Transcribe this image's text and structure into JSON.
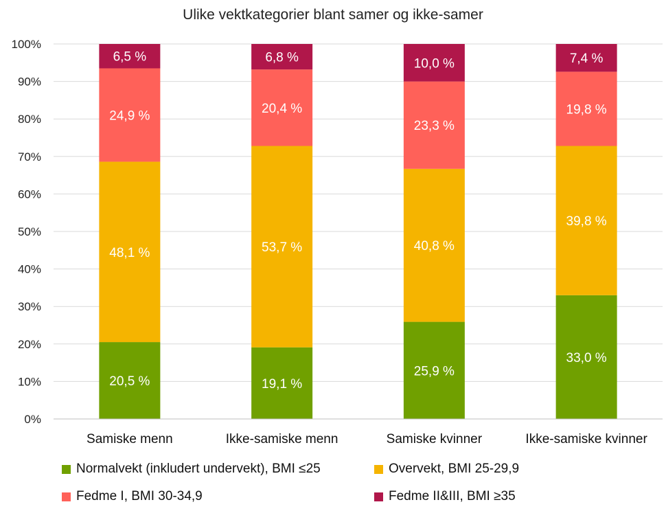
{
  "chart_data": {
    "type": "bar",
    "stacked": true,
    "title": "Ulike vektkategorier blant samer og ikke-samer",
    "categories": [
      "Samiske menn",
      "Ikke-samiske menn",
      "Samiske kvinner",
      "Ikke-samiske kvinner"
    ],
    "series": [
      {
        "name": "Normalvekt (inkludert undervekt), BMI ≤25",
        "color": "#70a000",
        "values": [
          20.5,
          19.1,
          25.9,
          33.0
        ],
        "labels": [
          "20,5 %",
          "19,1 %",
          "25,9 %",
          "33,0 %"
        ]
      },
      {
        "name": "Overvekt, BMI 25-29,9",
        "color": "#f5b400",
        "values": [
          48.1,
          53.7,
          40.8,
          39.8
        ],
        "labels": [
          "48,1 %",
          "53,7 %",
          "40,8 %",
          "39,8 %"
        ]
      },
      {
        "name": "Fedme I, BMI 30-34,9",
        "color": "#ff6159",
        "values": [
          24.9,
          20.4,
          23.3,
          19.8
        ],
        "labels": [
          "24,9 %",
          "20,4 %",
          "23,3 %",
          "19,8 %"
        ]
      },
      {
        "name": "Fedme II&III, BMI ≥35",
        "color": "#b0174a",
        "values": [
          6.5,
          6.8,
          10.0,
          7.4
        ],
        "labels": [
          "6,5 %",
          "6,8 %",
          "10,0 %",
          "7,4 %"
        ]
      }
    ],
    "ylim": [
      0,
      100
    ],
    "yticks": [
      "0%",
      "10%",
      "20%",
      "30%",
      "40%",
      "50%",
      "60%",
      "70%",
      "80%",
      "90%",
      "100%"
    ],
    "grid": true,
    "legend_position": "bottom"
  }
}
